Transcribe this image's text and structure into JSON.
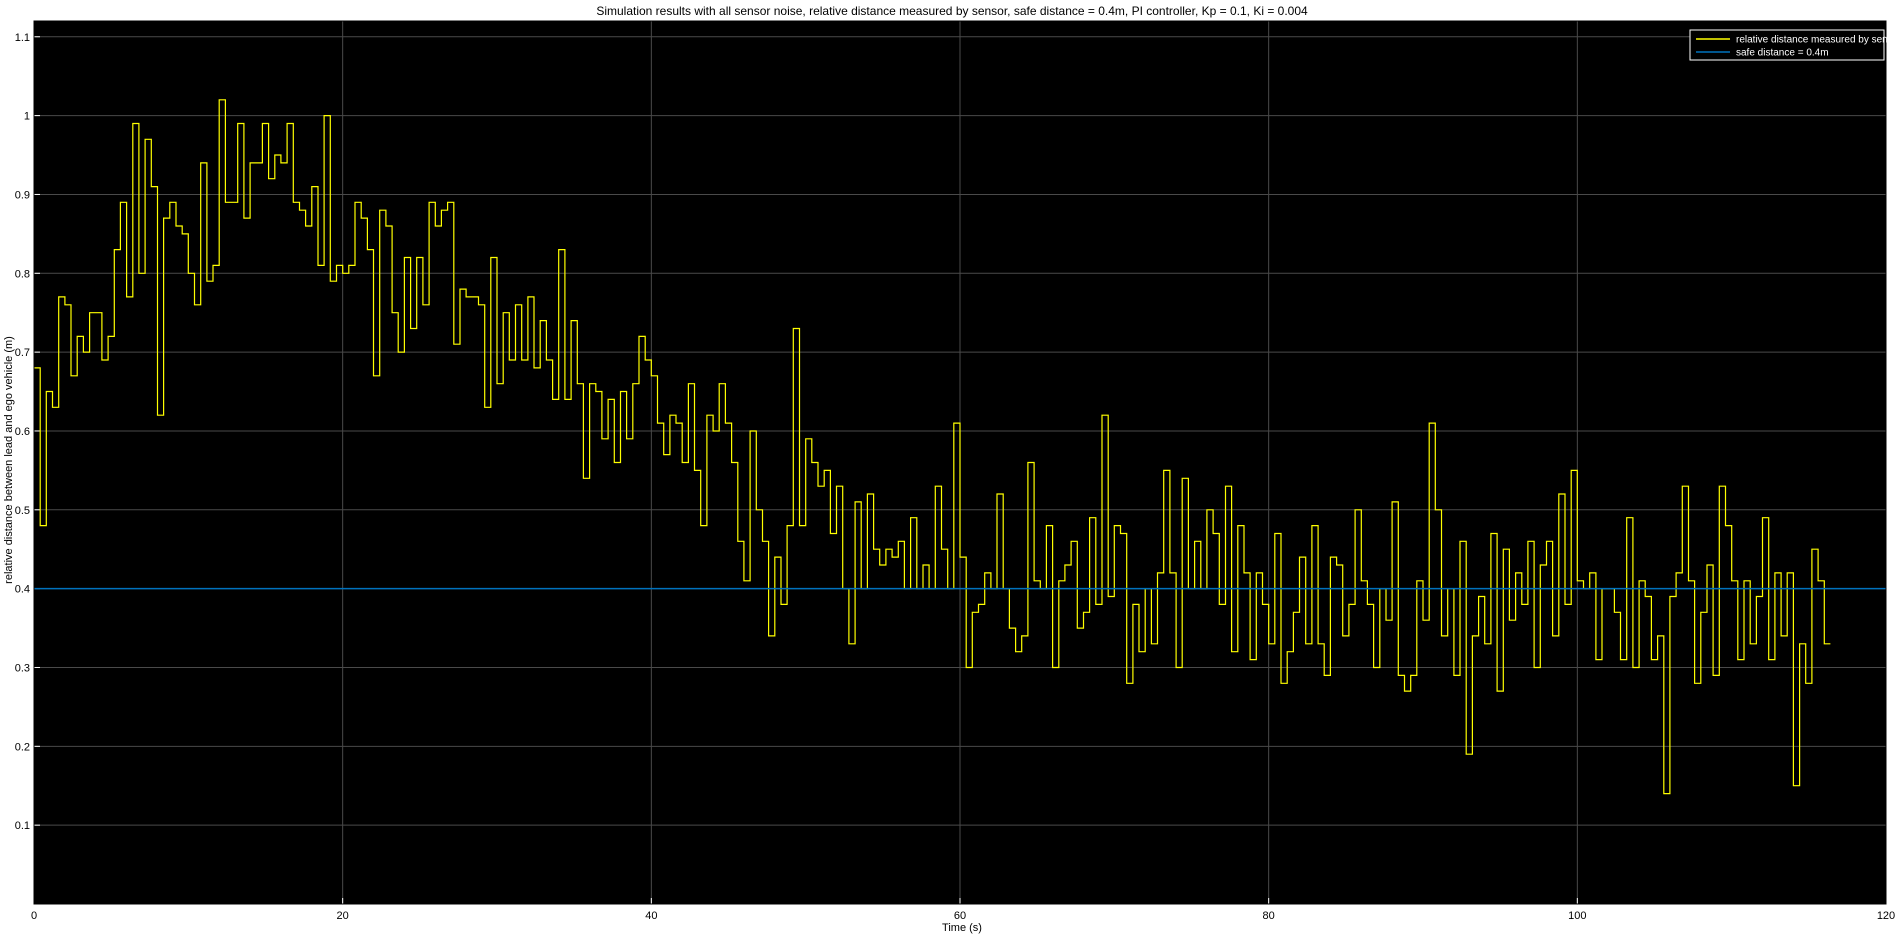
{
  "chart_data": {
    "type": "line",
    "title": "Simulation results with all sensor noise, relative distance measured by sensor, safe distance = 0.4m, PI controller, Kp = 0.1, Ki = 0.004",
    "xlabel": "Time (s)",
    "ylabel": "relative distance between lead and ego vehicle (m)",
    "xlim": [
      0,
      120
    ],
    "ylim": [
      0,
      1.12
    ],
    "xticks": [
      0,
      20,
      40,
      60,
      80,
      100,
      120
    ],
    "yticks": [
      0.1,
      0.2,
      0.3,
      0.4,
      0.5,
      0.6,
      0.7,
      0.8,
      0.9,
      1,
      1.1
    ],
    "grid": true,
    "background": "#000000",
    "grid_color": "#4a4a4a",
    "legend_position": "top-right",
    "series": [
      {
        "name": "relative distance measured by sensor",
        "color": "#ffff00",
        "style": "stairs",
        "x_start": 0,
        "x_step": 0.4,
        "values": [
          0.68,
          0.48,
          0.65,
          0.63,
          0.77,
          0.76,
          0.67,
          0.72,
          0.7,
          0.75,
          0.75,
          0.69,
          0.72,
          0.83,
          0.89,
          0.77,
          0.99,
          0.8,
          0.97,
          0.91,
          0.62,
          0.87,
          0.89,
          0.86,
          0.85,
          0.8,
          0.76,
          0.94,
          0.79,
          0.81,
          1.02,
          0.89,
          0.89,
          0.99,
          0.87,
          0.94,
          0.94,
          0.99,
          0.92,
          0.95,
          0.94,
          0.99,
          0.89,
          0.88,
          0.86,
          0.91,
          0.81,
          1.0,
          0.79,
          0.81,
          0.8,
          0.81,
          0.89,
          0.87,
          0.83,
          0.67,
          0.88,
          0.86,
          0.75,
          0.7,
          0.82,
          0.73,
          0.82,
          0.76,
          0.89,
          0.86,
          0.88,
          0.89,
          0.71,
          0.78,
          0.77,
          0.77,
          0.76,
          0.63,
          0.82,
          0.66,
          0.75,
          0.69,
          0.76,
          0.69,
          0.77,
          0.68,
          0.74,
          0.69,
          0.64,
          0.83,
          0.64,
          0.74,
          0.66,
          0.54,
          0.66,
          0.65,
          0.59,
          0.64,
          0.56,
          0.65,
          0.59,
          0.66,
          0.72,
          0.69,
          0.67,
          0.61,
          0.57,
          0.62,
          0.61,
          0.56,
          0.66,
          0.55,
          0.48,
          0.62,
          0.6,
          0.66,
          0.61,
          0.56,
          0.46,
          0.41,
          0.6,
          0.5,
          0.46,
          0.34,
          0.44,
          0.38,
          0.48,
          0.73,
          0.48,
          0.59,
          0.56,
          0.53,
          0.55,
          0.47,
          0.53,
          0.4,
          0.33,
          0.51,
          0.4,
          0.52,
          0.45,
          0.43,
          0.45,
          0.44,
          0.46,
          0.4,
          0.49,
          0.4,
          0.43,
          0.4,
          0.53,
          0.45,
          0.4,
          0.61,
          0.44,
          0.3,
          0.37,
          0.38,
          0.42,
          0.4,
          0.52,
          0.4,
          0.35,
          0.32,
          0.34,
          0.56,
          0.41,
          0.4,
          0.48,
          0.3,
          0.41,
          0.43,
          0.46,
          0.35,
          0.37,
          0.49,
          0.38,
          0.62,
          0.39,
          0.48,
          0.47,
          0.28,
          0.38,
          0.32,
          0.4,
          0.33,
          0.42,
          0.55,
          0.42,
          0.3,
          0.54,
          0.4,
          0.46,
          0.4,
          0.5,
          0.47,
          0.38,
          0.53,
          0.32,
          0.48,
          0.42,
          0.31,
          0.42,
          0.38,
          0.33,
          0.47,
          0.28,
          0.32,
          0.37,
          0.44,
          0.33,
          0.48,
          0.33,
          0.29,
          0.44,
          0.43,
          0.34,
          0.38,
          0.5,
          0.41,
          0.38,
          0.3,
          0.4,
          0.36,
          0.51,
          0.29,
          0.27,
          0.29,
          0.41,
          0.36,
          0.61,
          0.5,
          0.34,
          0.4,
          0.29,
          0.46,
          0.19,
          0.34,
          0.39,
          0.33,
          0.47,
          0.27,
          0.45,
          0.36,
          0.42,
          0.38,
          0.46,
          0.3,
          0.43,
          0.46,
          0.34,
          0.52,
          0.38,
          0.55,
          0.41,
          0.4,
          0.42,
          0.31,
          0.4,
          0.4,
          0.37,
          0.31,
          0.49,
          0.3,
          0.41,
          0.39,
          0.31,
          0.34,
          0.14,
          0.39,
          0.42,
          0.53,
          0.41,
          0.28,
          0.37,
          0.43,
          0.29,
          0.53,
          0.48,
          0.41,
          0.31,
          0.41,
          0.33,
          0.39,
          0.49,
          0.31,
          0.42,
          0.34,
          0.42,
          0.15,
          0.33,
          0.28,
          0.45,
          0.41,
          0.33
        ]
      },
      {
        "name": "safe distance = 0.4m",
        "color": "#0072bd",
        "style": "line",
        "x": [
          0,
          120
        ],
        "values": [
          0.4,
          0.4
        ]
      }
    ]
  }
}
